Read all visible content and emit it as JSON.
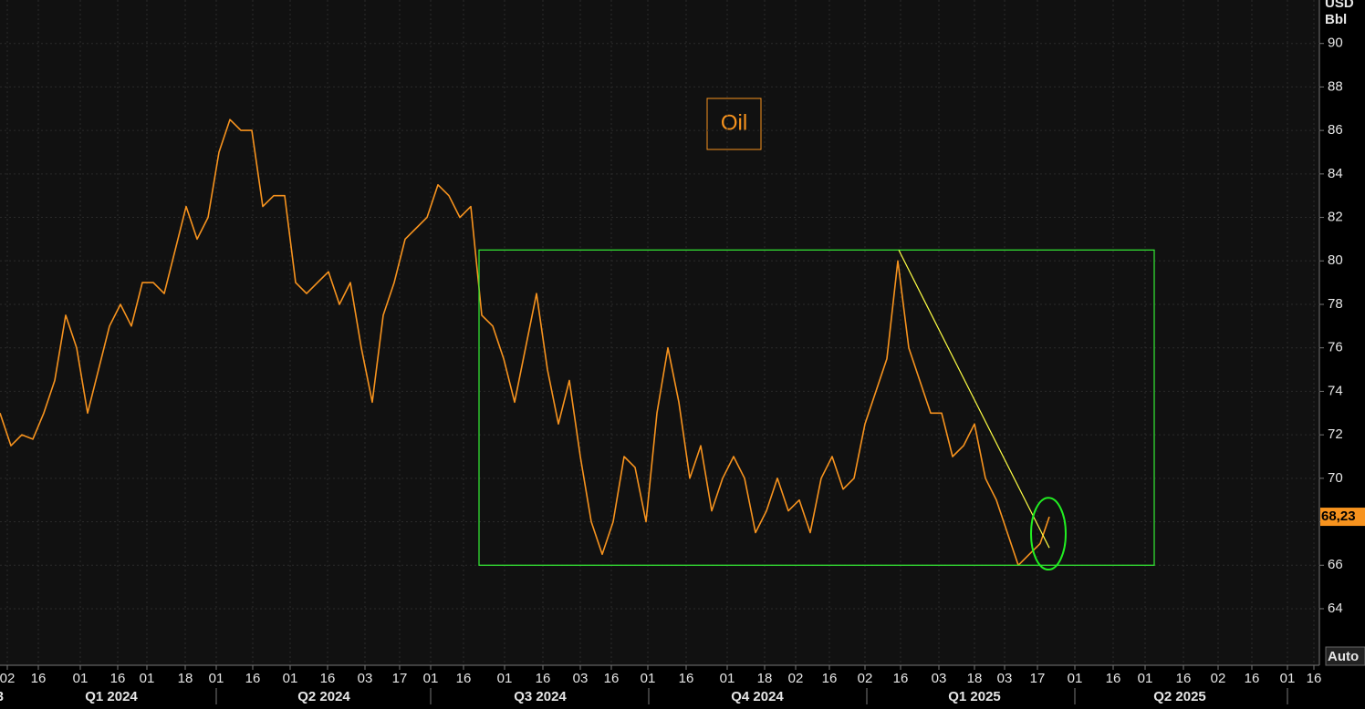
{
  "chart_data": {
    "type": "line",
    "title": "Oil",
    "y_unit": [
      "USD",
      "Bbl"
    ],
    "button": "Auto",
    "x": [
      0,
      12,
      24,
      36,
      48,
      60,
      72,
      84,
      96,
      108,
      120,
      132,
      144,
      156,
      168,
      180,
      192,
      204,
      216,
      228,
      240,
      252,
      264,
      276,
      288,
      300,
      312,
      324,
      336,
      348,
      360,
      372,
      384,
      396,
      408,
      420,
      432,
      444,
      456,
      468,
      480,
      492,
      504,
      516,
      528,
      540,
      552,
      564,
      576,
      588,
      600,
      612,
      624,
      636,
      648,
      660,
      672,
      684,
      696,
      708,
      720,
      732,
      744,
      756,
      768,
      780,
      792,
      804,
      816,
      828,
      840,
      852,
      864,
      876,
      888,
      900,
      912,
      924,
      936,
      948,
      960,
      972,
      984,
      996,
      1008,
      1020,
      1032,
      1044,
      1056,
      1068,
      1080,
      1092,
      1104,
      1116,
      1128,
      1140,
      1150
    ],
    "series": [
      {
        "name": "Oil",
        "color": "#f7931e",
        "values": [
          73,
          71.5,
          72,
          71.8,
          73,
          74.5,
          77.5,
          76,
          73,
          75,
          77,
          78,
          77,
          79,
          79,
          78.5,
          80.5,
          82.5,
          81,
          82,
          85,
          86.5,
          86,
          86,
          82.5,
          83,
          83,
          79,
          78.5,
          79,
          79.5,
          78,
          79,
          76,
          73.5,
          77.5,
          79,
          81,
          81.5,
          82,
          83.5,
          83,
          82,
          82.5,
          77.5,
          77,
          75.5,
          73.5,
          76,
          78.5,
          75,
          72.5,
          74.5,
          71,
          68,
          66.5,
          68,
          71,
          70.5,
          68,
          73,
          76,
          73.5,
          70,
          71.5,
          68.5,
          70,
          71,
          70,
          67.5,
          68.5,
          70,
          68.5,
          69,
          67.5,
          70,
          71,
          69.5,
          70,
          72.5,
          74,
          75.5,
          80,
          76,
          74.5,
          73,
          73,
          71,
          71.5,
          72.5,
          70,
          69,
          67.5,
          66,
          66.5,
          67,
          68.23
        ]
      }
    ],
    "last_price": {
      "value": 68.23,
      "label": "68,23"
    },
    "xlim": [
      0,
      1446
    ],
    "ylim": [
      61.4,
      92
    ],
    "yticks": [
      64,
      66,
      68,
      70,
      72,
      74,
      76,
      78,
      80,
      82,
      84,
      86,
      88,
      90
    ],
    "xticks": [
      {
        "value": 8,
        "label": "02"
      },
      {
        "value": 42,
        "label": "16"
      },
      {
        "value": 88,
        "label": "01"
      },
      {
        "value": 129,
        "label": "16"
      },
      {
        "value": 161,
        "label": "01"
      },
      {
        "value": 203,
        "label": "18"
      },
      {
        "value": 237,
        "label": "01"
      },
      {
        "value": 277,
        "label": "16"
      },
      {
        "value": 318,
        "label": "01"
      },
      {
        "value": 359,
        "label": "16"
      },
      {
        "value": 400,
        "label": "03"
      },
      {
        "value": 438,
        "label": "17"
      },
      {
        "value": 472,
        "label": "01"
      },
      {
        "value": 508,
        "label": "16"
      },
      {
        "value": 553,
        "label": "01"
      },
      {
        "value": 595,
        "label": "16"
      },
      {
        "value": 636,
        "label": "03"
      },
      {
        "value": 670,
        "label": "16"
      },
      {
        "value": 710,
        "label": "01"
      },
      {
        "value": 752,
        "label": "16"
      },
      {
        "value": 797,
        "label": "01"
      },
      {
        "value": 838,
        "label": "18"
      },
      {
        "value": 872,
        "label": "02"
      },
      {
        "value": 909,
        "label": "16"
      },
      {
        "value": 948,
        "label": "02"
      },
      {
        "value": 987,
        "label": "16"
      },
      {
        "value": 1029,
        "label": "03"
      },
      {
        "value": 1068,
        "label": "18"
      },
      {
        "value": 1101,
        "label": "03"
      },
      {
        "value": 1137,
        "label": "17"
      },
      {
        "value": 1178,
        "label": "01"
      },
      {
        "value": 1220,
        "label": "16"
      },
      {
        "value": 1255,
        "label": "01"
      },
      {
        "value": 1297,
        "label": "16"
      },
      {
        "value": 1335,
        "label": "02"
      },
      {
        "value": 1372,
        "label": "16"
      },
      {
        "value": 1411,
        "label": "01"
      },
      {
        "value": 1440,
        "label": "16"
      }
    ],
    "quarters": [
      {
        "value": 4,
        "label": "3"
      },
      {
        "value": 122,
        "label": "Q1 2024"
      },
      {
        "value": 355,
        "label": "Q2 2024"
      },
      {
        "value": 592,
        "label": "Q3 2024"
      },
      {
        "value": 830,
        "label": "Q4 2024"
      },
      {
        "value": 1068,
        "label": "Q1 2025"
      },
      {
        "value": 1293,
        "label": "Q2 2025"
      }
    ],
    "quarter_bounds": [
      237,
      472,
      711,
      950,
      1178,
      1411
    ],
    "grid": true,
    "annotations": [
      {
        "type": "rect",
        "x": [
          525,
          1265
        ],
        "y": [
          66,
          80.5
        ],
        "color": "#33dd33"
      },
      {
        "type": "line",
        "x": [
          985,
          1150
        ],
        "y": [
          80.5,
          66.8
        ],
        "color": "#ffff44"
      },
      {
        "type": "ellipse",
        "x": [
          1130,
          1168
        ],
        "y": [
          65.8,
          69.1
        ],
        "color": "#22ee22"
      }
    ]
  }
}
